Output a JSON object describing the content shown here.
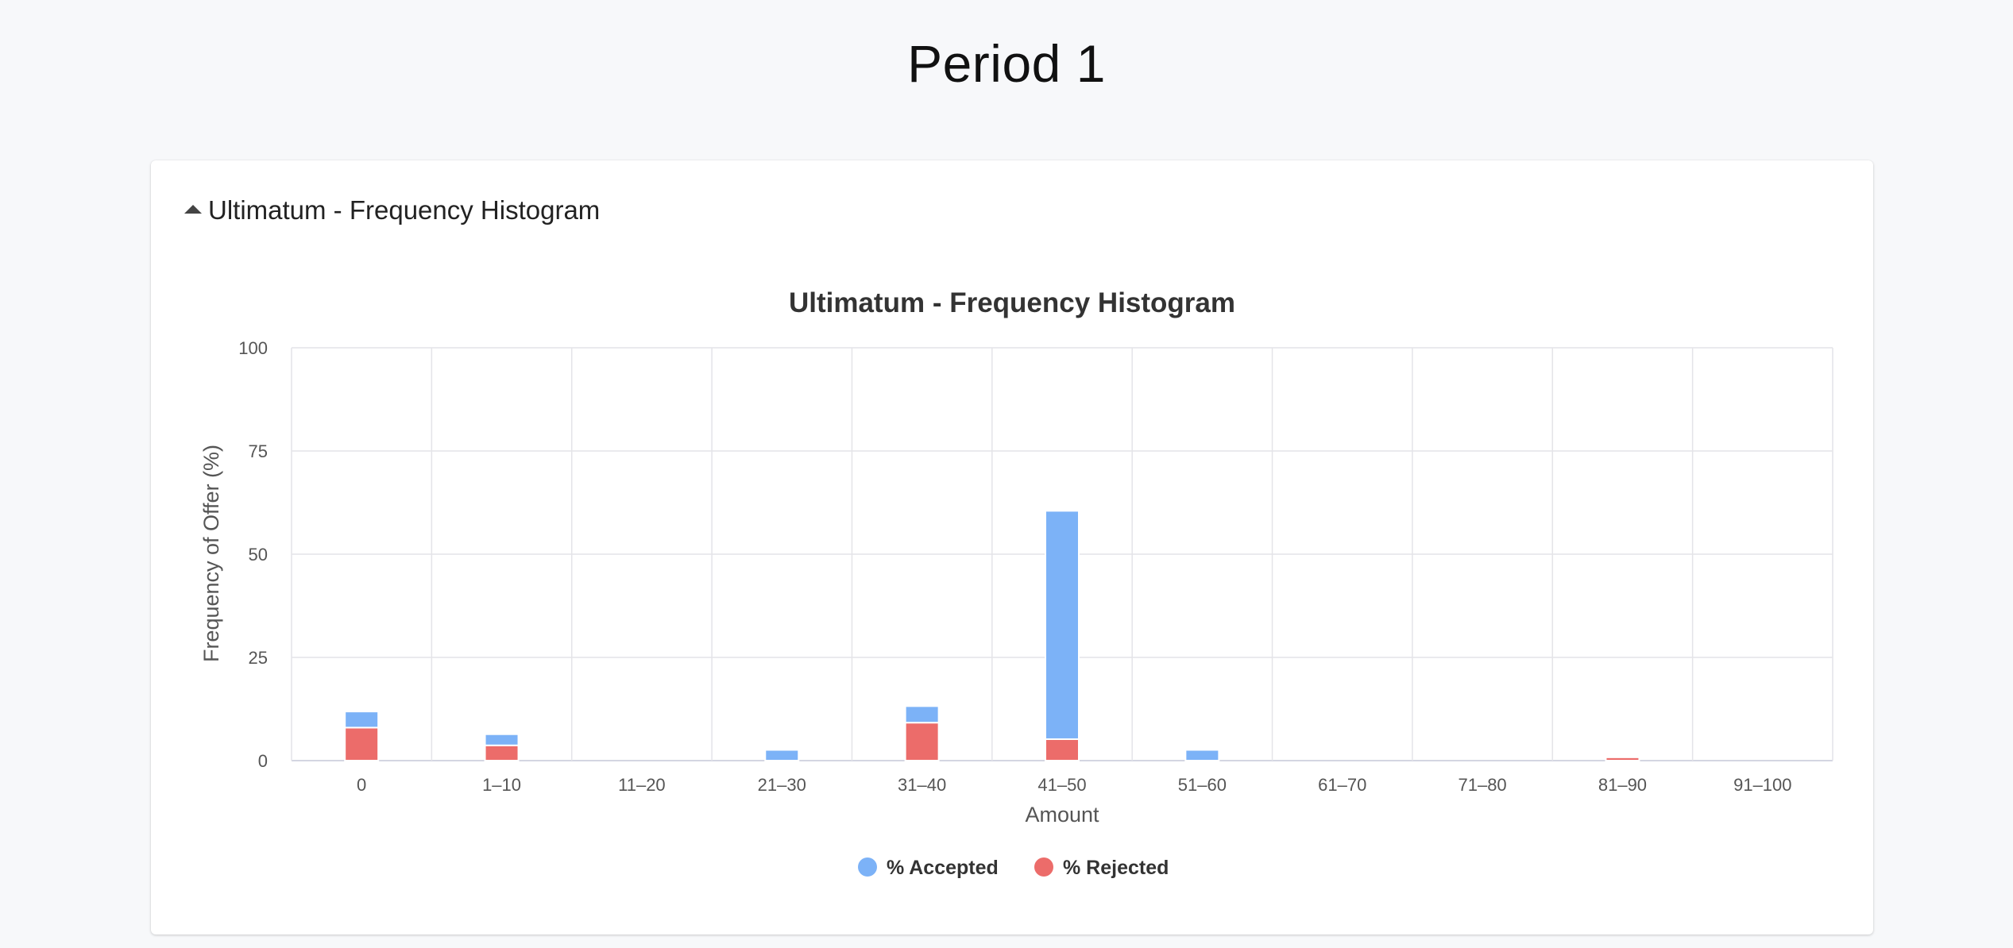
{
  "page": {
    "title": "Period 1"
  },
  "panel": {
    "header_label": "Ultimatum - Frequency Histogram",
    "header_icon": "caret-up-icon"
  },
  "colors": {
    "accepted": "#7cb2f7",
    "rejected": "#ec6c6a",
    "grid": "#e4e4e8",
    "axis": "#c6c8d8"
  },
  "chart_data": {
    "type": "bar",
    "stacked": true,
    "title": "Ultimatum - Frequency Histogram",
    "xlabel": "Amount",
    "ylabel": "Frequency of Offer (%)",
    "categories": [
      "0",
      "1–10",
      "11–20",
      "21–30",
      "31–40",
      "41–50",
      "51–60",
      "61–70",
      "71–80",
      "81–90",
      "91–100"
    ],
    "y_ticks": [
      "0",
      "25",
      "50",
      "75",
      "100"
    ],
    "ylim": [
      0,
      100
    ],
    "grid": true,
    "legend_position": "bottom-center",
    "series": [
      {
        "name": "% Rejected",
        "color": "#ec6c6a",
        "values": [
          8,
          3.7,
          0,
          0,
          9.2,
          5.2,
          0,
          0,
          0,
          0.8,
          0
        ]
      },
      {
        "name": "% Accepted",
        "color": "#7cb2f7",
        "values": [
          3.9,
          2.7,
          0,
          2.6,
          4,
          55.3,
          2.6,
          0,
          0,
          0,
          0
        ]
      }
    ]
  }
}
